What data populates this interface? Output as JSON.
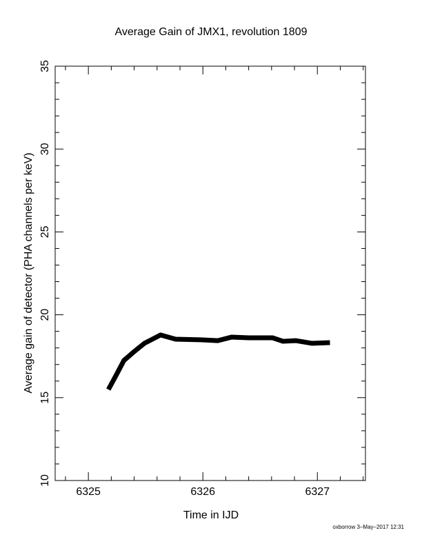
{
  "chart_data": {
    "type": "line",
    "title": "Average Gain of JMX1, revolution 1809",
    "x_label": "Time in IJD",
    "y_label": "Average gain of detector (PHA channels per keV)",
    "footer": "oxborrow  3–May–2017 12:31",
    "x": [
      6325.175,
      6325.24,
      6325.31,
      6325.4,
      6325.49,
      6325.63,
      6325.76,
      6325.98,
      6326.13,
      6326.25,
      6326.4,
      6326.61,
      6326.7,
      6326.81,
      6326.95,
      6327.11
    ],
    "values": [
      15.49,
      16.32,
      17.24,
      17.78,
      18.28,
      18.78,
      18.53,
      18.49,
      18.44,
      18.65,
      18.61,
      18.61,
      18.4,
      18.44,
      18.28,
      18.32
    ],
    "color": "#000000",
    "xlim": [
      6324.71,
      6327.42
    ],
    "ylim": [
      10,
      35
    ],
    "xticks": [
      6325,
      6326,
      6327
    ],
    "yticks": [
      10,
      15,
      20,
      25,
      30,
      35
    ],
    "x_minor_ticks": [
      6324.8,
      6325.2,
      6325.4,
      6325.6,
      6325.8,
      6326.2,
      6326.4,
      6326.6,
      6326.8,
      6327.2,
      6327.4
    ],
    "y_minor_ticks": [
      11,
      12,
      13,
      14,
      16,
      17,
      18,
      19,
      21,
      22,
      23,
      24,
      26,
      27,
      28,
      29,
      31,
      32,
      33,
      34
    ]
  }
}
